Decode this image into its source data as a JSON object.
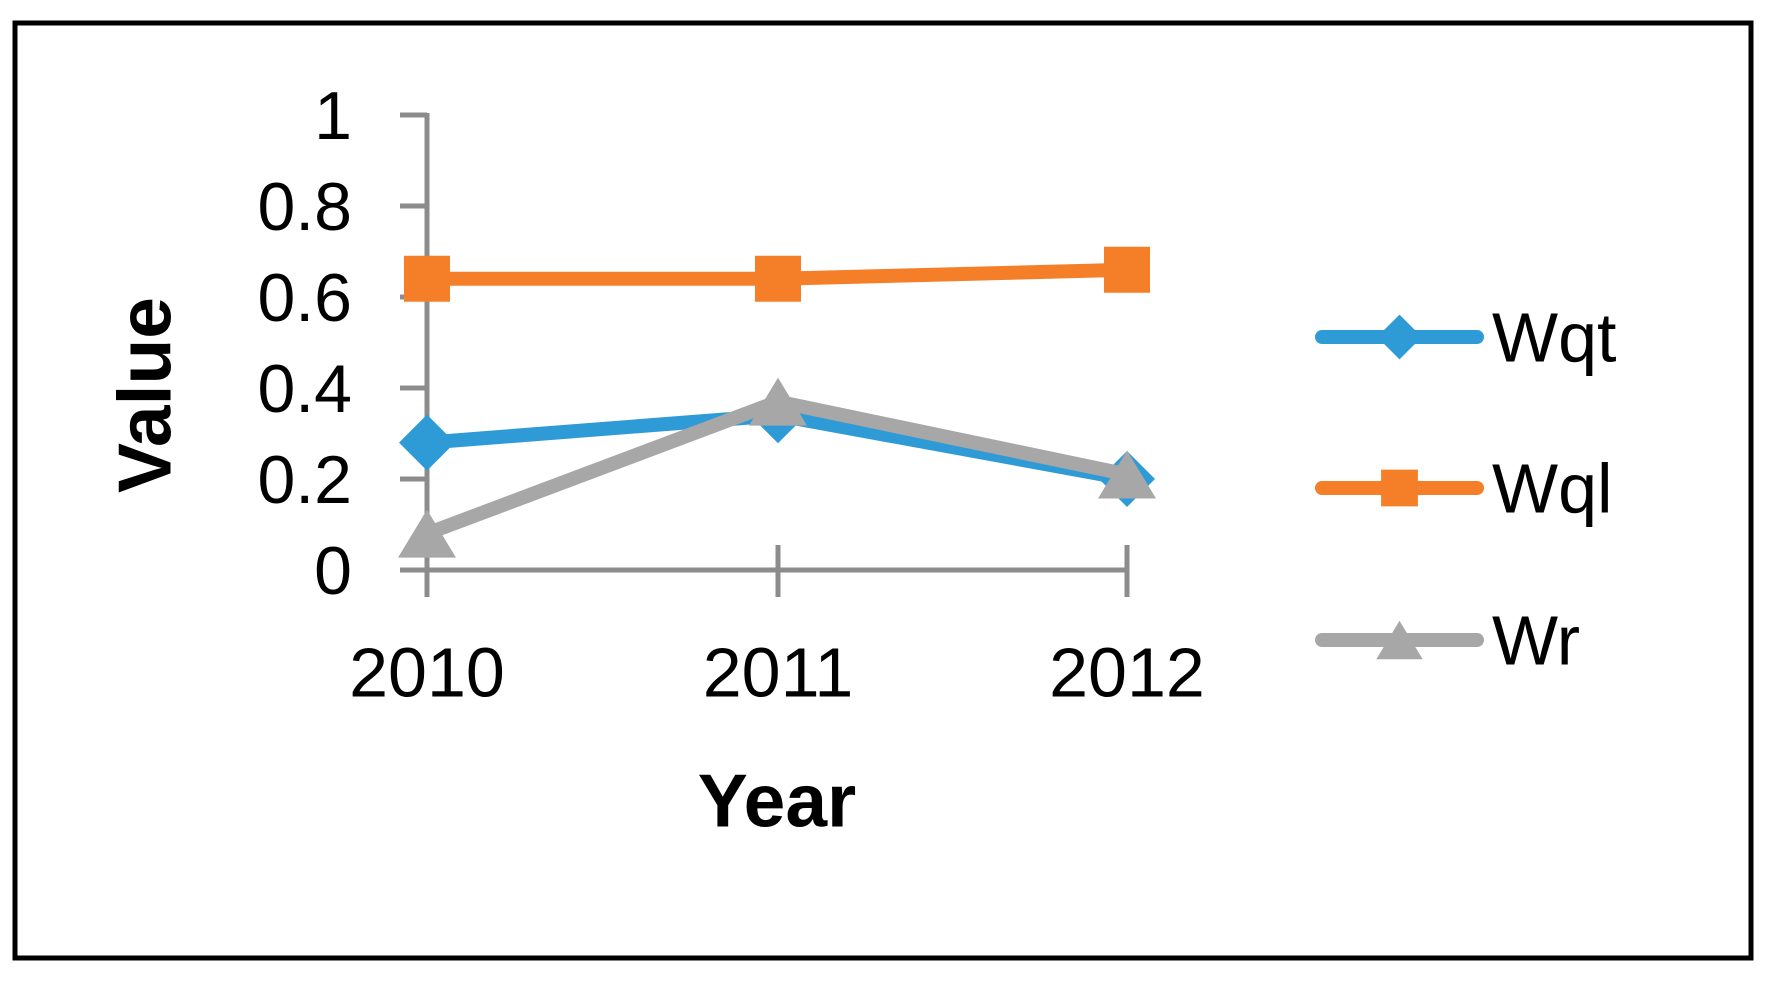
{
  "figure": {
    "background": "#ffffff",
    "border_color": "#000000"
  },
  "chart_data": {
    "type": "line",
    "title": "",
    "categories": [
      "2010",
      "2011",
      "2012"
    ],
    "series": [
      {
        "name": "Wqt",
        "marker": "diamond",
        "color": "#2E9BD6",
        "values": [
          0.28,
          0.34,
          0.2
        ]
      },
      {
        "name": "Wql",
        "marker": "square",
        "color": "#F57E28",
        "values": [
          0.64,
          0.64,
          0.66
        ]
      },
      {
        "name": "Wr",
        "marker": "triangle",
        "color": "#A7A7A7",
        "values": [
          0.08,
          0.37,
          0.21
        ]
      }
    ],
    "xlabel": "Year",
    "ylabel": "Value",
    "ylim": [
      0,
      1
    ],
    "yticks": [
      0,
      0.2,
      0.4,
      0.6,
      0.8,
      1
    ],
    "ytick_labels": [
      "0",
      "0.2",
      "0.4",
      "0.6",
      "0.8",
      "1"
    ],
    "grid": false,
    "legend_position": "right",
    "axis_color": "#8C8C8C",
    "text_color": "#000000"
  }
}
